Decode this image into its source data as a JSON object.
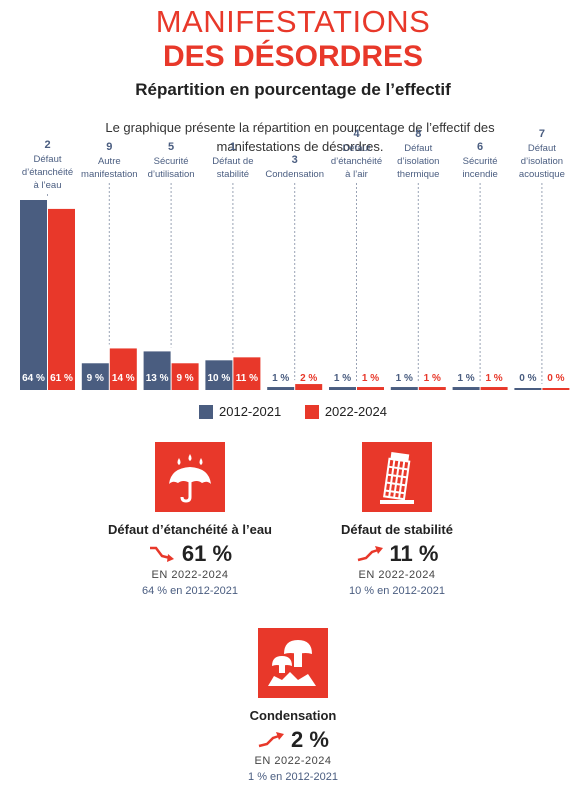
{
  "header": {
    "title_line1": "MANIFESTATIONS",
    "title_line2": "DES DÉSORDRES",
    "subtitle": "Répartition en pourcentage de l’effectif",
    "description": "Le graphique présente la répartition en pourcentage de l’effectif des manifestations de désordres."
  },
  "colors": {
    "series1": "#4a5d80",
    "series2": "#e8382a",
    "accent": "#e8382a"
  },
  "chart_data": {
    "type": "bar",
    "categories": [
      {
        "rank": "2",
        "label": "Défaut d’étanchéité à l’eau"
      },
      {
        "rank": "9",
        "label": "Autre manifestation"
      },
      {
        "rank": "5",
        "label": "Sécurité d’utilisation"
      },
      {
        "rank": "1",
        "label": "Défaut de stabilité"
      },
      {
        "rank": "3",
        "label": "Condensation"
      },
      {
        "rank": "4",
        "label": "Défaut d’étanchéité à l’air"
      },
      {
        "rank": "8",
        "label": "Défaut d’isolation thermique"
      },
      {
        "rank": "6",
        "label": "Sécurité incendie"
      },
      {
        "rank": "7",
        "label": "Défaut d’isolation acoustique"
      }
    ],
    "series": [
      {
        "name": "2012-2021",
        "values": [
          64,
          9,
          13,
          10,
          1,
          1,
          1,
          1,
          0
        ]
      },
      {
        "name": "2022-2024",
        "values": [
          61,
          14,
          9,
          11,
          2,
          1,
          1,
          1,
          0
        ]
      }
    ],
    "value_labels": [
      [
        "64 %",
        "9 %",
        "13 %",
        "10 %",
        "1 %",
        "1 %",
        "1 %",
        "1 %",
        "0 %"
      ],
      [
        "61 %",
        "14 %",
        "9 %",
        "11 %",
        "2 %",
        "1 %",
        "1 %",
        "1 %",
        "0 %"
      ]
    ],
    "ylim": [
      0,
      64
    ]
  },
  "highlights": [
    {
      "icon": "umbrella-rain-icon",
      "label": "Défaut d’étanchéité à l’eau",
      "value": "61 %",
      "trend": "down",
      "period": "EN 2022-2024",
      "previous": "64 % en 2012-2021"
    },
    {
      "icon": "leaning-tower-icon",
      "label": "Défaut de stabilité",
      "value": "11 %",
      "trend": "up",
      "period": "EN 2022-2024",
      "previous": "10 % en 2012-2021"
    },
    {
      "icon": "mushroom-mold-icon",
      "label": "Condensation",
      "value": "2 %",
      "trend": "up",
      "period": "EN 2022-2024",
      "previous": "1 % en 2012-2021"
    }
  ]
}
